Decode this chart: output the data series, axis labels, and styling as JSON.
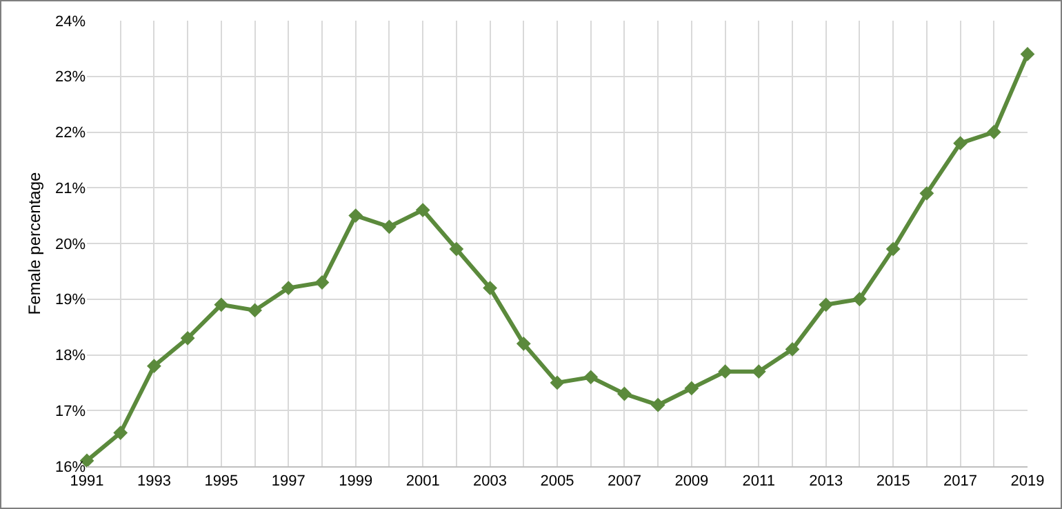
{
  "chart_data": {
    "type": "line",
    "ylabel": "Female percentage",
    "x": [
      1991,
      1992,
      1993,
      1994,
      1995,
      1996,
      1997,
      1998,
      1999,
      2000,
      2001,
      2002,
      2003,
      2004,
      2005,
      2006,
      2007,
      2008,
      2009,
      2010,
      2011,
      2012,
      2013,
      2014,
      2015,
      2016,
      2017,
      2018,
      2019
    ],
    "series": [
      {
        "color": "#5b8a3c",
        "values": [
          16.1,
          16.6,
          17.8,
          18.3,
          18.9,
          18.8,
          19.2,
          19.3,
          20.5,
          20.3,
          20.6,
          19.9,
          19.2,
          18.2,
          17.5,
          17.6,
          17.3,
          17.1,
          17.4,
          17.7,
          17.7,
          18.1,
          18.9,
          19.0,
          19.9,
          20.9,
          21.8,
          22.0,
          23.4
        ]
      }
    ],
    "xlim": [
      1991,
      2019
    ],
    "xticks": [
      1991,
      {
        "value": 1992,
        "label": null
      },
      1993,
      {
        "value": 1994,
        "label": null
      },
      1995,
      {
        "value": 1996,
        "label": null
      },
      1997,
      {
        "value": 1998,
        "label": null
      },
      1999,
      {
        "value": 2000,
        "label": null
      },
      2001,
      {
        "value": 2002,
        "label": null
      },
      2003,
      {
        "value": 2004,
        "label": null
      },
      2005,
      {
        "value": 2006,
        "label": null
      },
      2007,
      {
        "value": 2008,
        "label": null
      },
      2009,
      {
        "value": 2010,
        "label": null
      },
      2011,
      {
        "value": 2012,
        "label": null
      },
      2013,
      {
        "value": 2014,
        "label": null
      },
      2015,
      {
        "value": 2016,
        "label": null
      },
      2017,
      {
        "value": 2018,
        "label": null
      },
      2019
    ],
    "ylim": [
      16,
      24
    ],
    "yticks": [
      {
        "value": 16,
        "label": "16%"
      },
      {
        "value": 17,
        "label": "17%"
      },
      {
        "value": 18,
        "label": "18%"
      },
      {
        "value": 19,
        "label": "19%"
      },
      {
        "value": 20,
        "label": "20%"
      },
      {
        "value": 21,
        "label": "21%"
      },
      {
        "value": 22,
        "label": "22%"
      },
      {
        "value": 23,
        "label": "23%"
      },
      {
        "value": 24,
        "label": "24%"
      }
    ],
    "grid": true,
    "legend": false,
    "marker": "diamond",
    "line_style": "solid"
  }
}
